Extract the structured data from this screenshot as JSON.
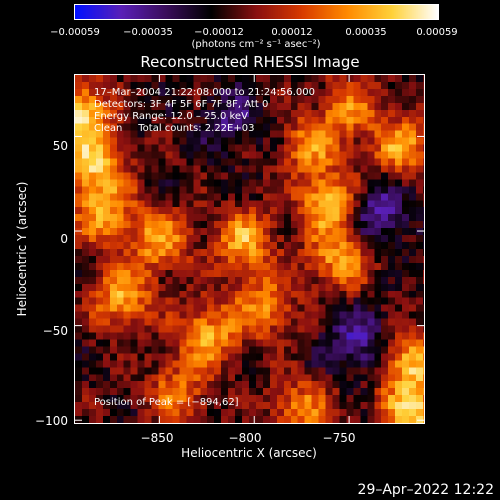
{
  "chart_data": {
    "type": "heatmap",
    "title": "Reconstructed RHESSI Image",
    "xlabel": "Heliocentric X (arcsec)",
    "ylabel": "Heliocentric Y (arcsec)",
    "xlim": [
      -895,
      -710
    ],
    "ylim": [
      -102,
      83
    ],
    "xticks": [
      -850,
      -800,
      -750
    ],
    "xtick_labels": [
      "−850",
      "−800",
      "−750"
    ],
    "yticks": [
      50,
      0,
      -50,
      -100
    ],
    "ytick_labels": [
      "50",
      "0",
      "−50",
      "−100"
    ],
    "colorbar": {
      "range": [
        -0.00059,
        0.00059
      ],
      "tick_labels": [
        "−0.00059",
        "−0.00035",
        "−0.00012",
        "0.00012",
        "0.00035",
        "0.00059"
      ],
      "units": "(photons cm⁻² s⁻¹ asec⁻²)",
      "colors": [
        "#0010ff",
        "#5a1fb8",
        "#3a0d5c",
        "#000000",
        "#8a1010",
        "#d83a00",
        "#ff8a00",
        "#ffd23a",
        "#ffffff"
      ]
    },
    "annotations": {
      "time_range": "17–Mar–2004 21:22:08.000 to 21:24:56.000",
      "detectors": "Detectors: 3F 4F 5F 6F 7F 8F, Att 0",
      "energy": "Energy Range: 12.0 – 25.0 keV",
      "clean": "Clean     Total counts: 2.22E+03",
      "peak": "Position of Peak = [−894,62]"
    },
    "hot_spots": [
      {
        "x": -893,
        "y": 62,
        "v": 1.0
      },
      {
        "x": -885,
        "y": 35,
        "v": 0.8
      },
      {
        "x": -880,
        "y": 10,
        "v": 0.7
      },
      {
        "x": -870,
        "y": -35,
        "v": 0.75
      },
      {
        "x": -850,
        "y": -5,
        "v": 0.7
      },
      {
        "x": -825,
        "y": -55,
        "v": 0.75
      },
      {
        "x": -805,
        "y": -5,
        "v": 0.75
      },
      {
        "x": -795,
        "y": -40,
        "v": 0.65
      },
      {
        "x": -770,
        "y": 45,
        "v": 0.6
      },
      {
        "x": -760,
        "y": 15,
        "v": 0.85
      },
      {
        "x": -755,
        "y": -15,
        "v": 0.7
      },
      {
        "x": -750,
        "y": 65,
        "v": 0.55
      },
      {
        "x": -722,
        "y": 45,
        "v": 0.7
      },
      {
        "x": -717,
        "y": -70,
        "v": 0.85
      },
      {
        "x": -716,
        "y": -98,
        "v": 0.9
      },
      {
        "x": -775,
        "y": -95,
        "v": 0.6
      },
      {
        "x": -840,
        "y": -85,
        "v": 0.55
      }
    ],
    "cold_spots": [
      {
        "x": -735,
        "y": 10,
        "v": -0.6
      },
      {
        "x": -812,
        "y": 60,
        "v": -0.4
      },
      {
        "x": -745,
        "y": -60,
        "v": -0.55
      }
    ]
  },
  "footer": {
    "timestamp": "29–Apr–2022 12:22"
  }
}
